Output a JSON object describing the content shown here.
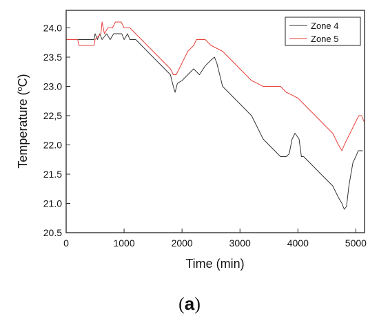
{
  "chart_data": {
    "type": "line",
    "xlabel": "Time (min)",
    "ylabel_main": "Temperature (",
    "ylabel_sup": "o",
    "ylabel_end": "C)",
    "xlim": [
      0,
      5150
    ],
    "ylim": [
      20.5,
      24.3
    ],
    "xticks": [
      {
        "value": 0,
        "label": "0"
      },
      {
        "value": 1000,
        "label": "1000"
      },
      {
        "value": 2000,
        "label": "2000"
      },
      {
        "value": 3000,
        "label": "3000"
      },
      {
        "value": 4000,
        "label": "4000"
      },
      {
        "value": 5000,
        "label": "5000"
      }
    ],
    "yticks": [
      {
        "value": 20.5,
        "label": "20.5"
      },
      {
        "value": 21.0,
        "label": "21.0"
      },
      {
        "value": 21.5,
        "label": "21.5"
      },
      {
        "value": 22.0,
        "label": "22.0"
      },
      {
        "value": 22.5,
        "label": "22,5"
      },
      {
        "value": 23.0,
        "label": "23.0"
      },
      {
        "value": 23.5,
        "label": "23.5"
      },
      {
        "value": 24.0,
        "label": "24.0"
      }
    ],
    "legend_position": "top-right",
    "series": [
      {
        "name": "Zone 4",
        "color": "#333333",
        "points": [
          [
            0,
            23.8
          ],
          [
            480,
            23.8
          ],
          [
            500,
            23.9
          ],
          [
            540,
            23.8
          ],
          [
            580,
            23.9
          ],
          [
            620,
            23.8
          ],
          [
            700,
            23.9
          ],
          [
            760,
            23.8
          ],
          [
            820,
            23.9
          ],
          [
            900,
            23.9
          ],
          [
            960,
            23.9
          ],
          [
            1000,
            23.8
          ],
          [
            1060,
            23.9
          ],
          [
            1100,
            23.8
          ],
          [
            1200,
            23.8
          ],
          [
            1300,
            23.7
          ],
          [
            1400,
            23.6
          ],
          [
            1500,
            23.5
          ],
          [
            1600,
            23.4
          ],
          [
            1700,
            23.3
          ],
          [
            1800,
            23.2
          ],
          [
            1850,
            23.0
          ],
          [
            1880,
            22.9
          ],
          [
            1920,
            23.05
          ],
          [
            2000,
            23.1
          ],
          [
            2100,
            23.2
          ],
          [
            2200,
            23.3
          ],
          [
            2300,
            23.2
          ],
          [
            2400,
            23.35
          ],
          [
            2500,
            23.45
          ],
          [
            2560,
            23.5
          ],
          [
            2600,
            23.4
          ],
          [
            2650,
            23.2
          ],
          [
            2700,
            23.0
          ],
          [
            2800,
            22.9
          ],
          [
            2900,
            22.8
          ],
          [
            3000,
            22.7
          ],
          [
            3100,
            22.6
          ],
          [
            3200,
            22.5
          ],
          [
            3300,
            22.3
          ],
          [
            3400,
            22.1
          ],
          [
            3500,
            22.0
          ],
          [
            3600,
            21.9
          ],
          [
            3700,
            21.8
          ],
          [
            3800,
            21.8
          ],
          [
            3850,
            21.85
          ],
          [
            3900,
            22.1
          ],
          [
            3950,
            22.2
          ],
          [
            4020,
            22.1
          ],
          [
            4060,
            21.8
          ],
          [
            4100,
            21.8
          ],
          [
            4200,
            21.7
          ],
          [
            4300,
            21.6
          ],
          [
            4400,
            21.5
          ],
          [
            4500,
            21.4
          ],
          [
            4600,
            21.3
          ],
          [
            4700,
            21.1
          ],
          [
            4760,
            21.0
          ],
          [
            4800,
            20.9
          ],
          [
            4840,
            20.95
          ],
          [
            4880,
            21.3
          ],
          [
            4950,
            21.7
          ],
          [
            5000,
            21.8
          ],
          [
            5040,
            21.9
          ],
          [
            5120,
            21.9
          ]
        ]
      },
      {
        "name": "Zone 5",
        "color": "#e8403a",
        "points": [
          [
            0,
            23.8
          ],
          [
            200,
            23.8
          ],
          [
            220,
            23.7
          ],
          [
            480,
            23.7
          ],
          [
            500,
            23.8
          ],
          [
            600,
            23.9
          ],
          [
            620,
            24.1
          ],
          [
            660,
            23.9
          ],
          [
            720,
            24.0
          ],
          [
            800,
            24.0
          ],
          [
            850,
            24.1
          ],
          [
            950,
            24.1
          ],
          [
            1000,
            24.0
          ],
          [
            1100,
            24.0
          ],
          [
            1200,
            23.9
          ],
          [
            1300,
            23.8
          ],
          [
            1400,
            23.7
          ],
          [
            1500,
            23.6
          ],
          [
            1600,
            23.5
          ],
          [
            1700,
            23.4
          ],
          [
            1800,
            23.3
          ],
          [
            1850,
            23.2
          ],
          [
            1900,
            23.2
          ],
          [
            2000,
            23.4
          ],
          [
            2100,
            23.6
          ],
          [
            2200,
            23.7
          ],
          [
            2250,
            23.8
          ],
          [
            2400,
            23.8
          ],
          [
            2500,
            23.7
          ],
          [
            2700,
            23.6
          ],
          [
            2800,
            23.5
          ],
          [
            2900,
            23.4
          ],
          [
            3000,
            23.3
          ],
          [
            3100,
            23.2
          ],
          [
            3200,
            23.1
          ],
          [
            3300,
            23.05
          ],
          [
            3400,
            23.0
          ],
          [
            3700,
            23.0
          ],
          [
            3800,
            22.9
          ],
          [
            3900,
            22.85
          ],
          [
            4000,
            22.8
          ],
          [
            4100,
            22.7
          ],
          [
            4200,
            22.6
          ],
          [
            4300,
            22.5
          ],
          [
            4400,
            22.4
          ],
          [
            4500,
            22.3
          ],
          [
            4600,
            22.2
          ],
          [
            4650,
            22.1
          ],
          [
            4700,
            22.0
          ],
          [
            4760,
            21.9
          ],
          [
            4800,
            22.0
          ],
          [
            4850,
            22.1
          ],
          [
            4900,
            22.2
          ],
          [
            4950,
            22.3
          ],
          [
            5000,
            22.4
          ],
          [
            5050,
            22.5
          ],
          [
            5100,
            22.5
          ],
          [
            5140,
            22.4
          ]
        ]
      }
    ]
  },
  "caption": {
    "open": "(",
    "letter": "a",
    "close": ")"
  }
}
